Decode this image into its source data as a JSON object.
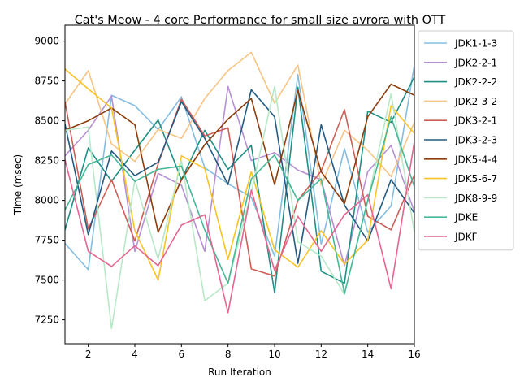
{
  "chart_data": {
    "type": "line",
    "title": "Cat's Meow - 4 core Performance for small size avrora with OTT",
    "xlabel": "Run Iteration",
    "ylabel": "Time (msec)",
    "xlim": [
      1,
      16
    ],
    "ylim": [
      7100,
      9100
    ],
    "xticks": [
      2,
      4,
      6,
      8,
      10,
      12,
      14,
      16
    ],
    "yticks": [
      7250,
      7500,
      7750,
      8000,
      8250,
      8500,
      8750,
      9000
    ],
    "legend_position": "outside-right",
    "grid": false,
    "x": [
      1,
      2,
      3,
      4,
      5,
      6,
      7,
      8,
      9,
      10,
      11,
      12,
      13,
      14,
      15,
      16
    ],
    "series": [
      {
        "name": "JDK1-1-3",
        "color": "#85bde0",
        "values": [
          7730,
          7565,
          8660,
          8595,
          8445,
          8650,
          8205,
          8105,
          8020,
          7650,
          8790,
          7725,
          8325,
          7800,
          7965,
          8850
        ]
      },
      {
        "name": "JDK2-2-1",
        "color": "#b68fd4",
        "values": [
          8280,
          8440,
          8655,
          7680,
          8170,
          8095,
          7680,
          8715,
          8250,
          8300,
          8190,
          8130,
          7590,
          8180,
          8345,
          7930
        ]
      },
      {
        "name": "JDK2-2-2",
        "color": "#1d9085",
        "values": [
          7815,
          8330,
          8120,
          8315,
          8505,
          8130,
          8440,
          8195,
          8345,
          7420,
          8710,
          7555,
          7480,
          8560,
          8490,
          8775
        ]
      },
      {
        "name": "JDK2-3-2",
        "color": "#f6c484",
        "values": [
          8605,
          8815,
          8355,
          8245,
          8445,
          8390,
          8640,
          8815,
          8930,
          8610,
          8850,
          8095,
          8440,
          8315,
          8150,
          8490
        ]
      },
      {
        "name": "JDK3-2-1",
        "color": "#cc5e56",
        "values": [
          8620,
          7820,
          8130,
          7745,
          8230,
          8635,
          8405,
          8455,
          7570,
          7525,
          8000,
          8185,
          8570,
          7900,
          7815,
          8160
        ]
      },
      {
        "name": "JDK3-2-3",
        "color": "#245a80",
        "values": [
          8480,
          7785,
          8310,
          8155,
          8240,
          8620,
          8390,
          8100,
          8695,
          8525,
          7605,
          8475,
          7970,
          7745,
          8130,
          7920
        ]
      },
      {
        "name": "JDK5-4-4",
        "color": "#8c3d0c",
        "values": [
          8440,
          8500,
          8580,
          8475,
          7800,
          8130,
          8350,
          8510,
          8640,
          8100,
          8690,
          8180,
          7980,
          8525,
          8730,
          8660
        ]
      },
      {
        "name": "JDK5-6-7",
        "color": "#f8c325",
        "values": [
          8825,
          8700,
          8580,
          7810,
          7500,
          8280,
          8200,
          7630,
          8180,
          7690,
          7580,
          7810,
          7600,
          7750,
          8595,
          8420
        ]
      },
      {
        "name": "JDK8-9-9",
        "color": "#b8e8c8",
        "values": [
          8440,
          8460,
          7195,
          8130,
          7630,
          8250,
          7370,
          7480,
          8050,
          8715,
          7740,
          7650,
          7410,
          8000,
          8670,
          7800
        ]
      },
      {
        "name": "JDKE",
        "color": "#45b898",
        "values": [
          7940,
          8225,
          8285,
          8120,
          8195,
          8215,
          7815,
          7480,
          8135,
          8285,
          8000,
          8135,
          7415,
          8000,
          8525,
          8085
        ]
      },
      {
        "name": "JDKF",
        "color": "#e46690",
        "values": [
          8255,
          7680,
          7585,
          7715,
          7590,
          7845,
          7910,
          7295,
          8065,
          7560,
          7900,
          7680,
          7910,
          8035,
          7445,
          8370
        ]
      }
    ]
  }
}
